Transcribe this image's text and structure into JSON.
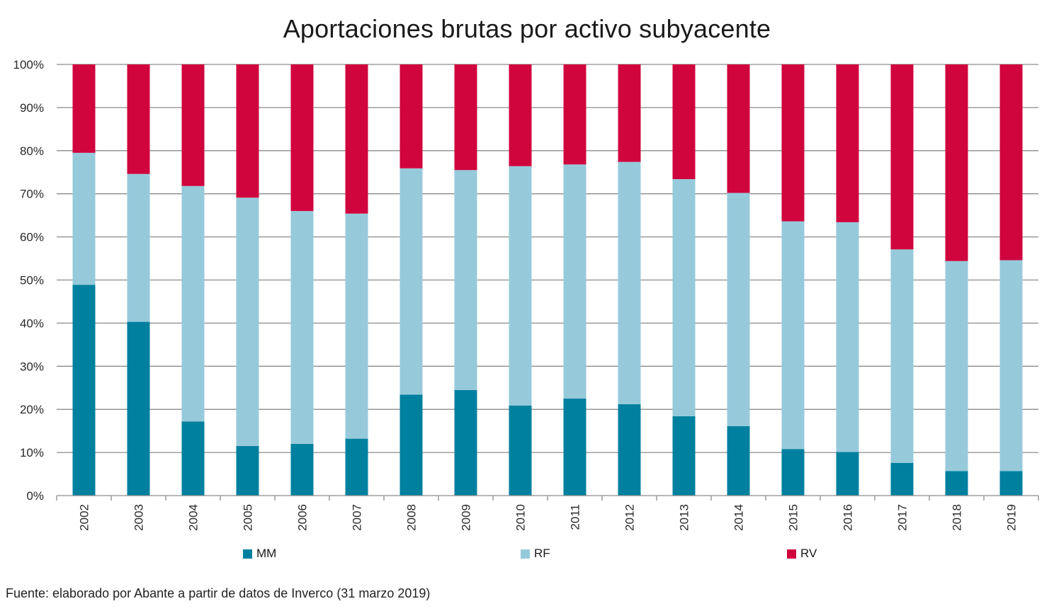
{
  "chart_data": {
    "type": "bar",
    "stacked": true,
    "title": "Aportaciones brutas por activo subyacente",
    "xlabel": "",
    "ylabel": "",
    "ylim": [
      0,
      100
    ],
    "yticks": [
      "0%",
      "10%",
      "20%",
      "30%",
      "40%",
      "50%",
      "60%",
      "70%",
      "80%",
      "90%",
      "100%"
    ],
    "grid": true,
    "legend_position": "bottom",
    "categories": [
      "2002",
      "2003",
      "2004",
      "2005",
      "2006",
      "2007",
      "2008",
      "2009",
      "2010",
      "2011",
      "2012",
      "2013",
      "2014",
      "2015",
      "2016",
      "2017",
      "2018",
      "2019"
    ],
    "series": [
      {
        "name": "MM",
        "color": "#00809f",
        "values": [
          48.9,
          40.3,
          17.2,
          11.5,
          12.0,
          13.2,
          23.4,
          24.5,
          20.9,
          22.5,
          21.2,
          18.4,
          16.1,
          10.8,
          10.1,
          7.6,
          5.7,
          5.7
        ]
      },
      {
        "name": "RF",
        "color": "#96cadb",
        "values": [
          30.6,
          34.3,
          54.6,
          57.6,
          54.0,
          52.2,
          52.5,
          51.0,
          55.5,
          54.3,
          56.2,
          55.0,
          54.1,
          52.8,
          53.3,
          49.5,
          48.7,
          48.9
        ]
      },
      {
        "name": "RV",
        "color": "#d0053e",
        "values": [
          20.5,
          25.4,
          28.2,
          30.9,
          34.0,
          34.6,
          24.1,
          24.5,
          23.6,
          23.2,
          22.6,
          26.6,
          29.8,
          36.4,
          36.6,
          42.9,
          45.6,
          45.4
        ]
      }
    ],
    "source": "Fuente: elaborado por Abante a partir de datos de Inverco (31 marzo 2019)"
  }
}
